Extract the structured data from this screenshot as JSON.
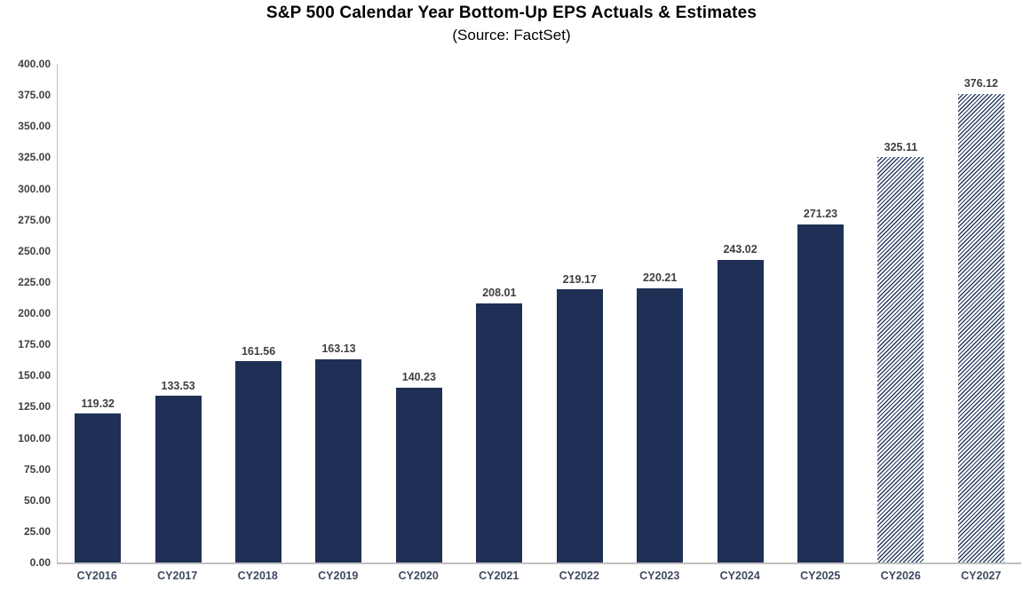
{
  "chart_data": {
    "type": "bar",
    "title": "S&P 500 Calendar Year Bottom-Up EPS Actuals & Estimates",
    "subtitle": "(Source: FactSet)",
    "categories": [
      "CY2016",
      "CY2017",
      "CY2018",
      "CY2019",
      "CY2020",
      "CY2021",
      "CY2022",
      "CY2023",
      "CY2024",
      "CY2025",
      "CY2026",
      "CY2027"
    ],
    "values": [
      119.32,
      133.53,
      161.56,
      163.13,
      140.23,
      208.01,
      219.17,
      220.21,
      243.02,
      271.23,
      325.11,
      376.12
    ],
    "value_labels": [
      "119.32",
      "133.53",
      "161.56",
      "163.13",
      "140.23",
      "208.01",
      "219.17",
      "220.21",
      "243.02",
      "271.23",
      "325.11",
      "376.12"
    ],
    "bar_styles": [
      "solid",
      "solid",
      "solid",
      "solid",
      "solid",
      "solid",
      "solid",
      "solid",
      "solid",
      "solid",
      "hatched",
      "hatched"
    ],
    "bar_style_meaning": {
      "solid": "actual",
      "hatched": "estimate"
    },
    "xlabel": "",
    "ylabel": "",
    "ylim": [
      0,
      400
    ],
    "ytick_step": 25,
    "yticks": [
      "400.00",
      "375.00",
      "350.00",
      "325.00",
      "300.00",
      "275.00",
      "250.00",
      "225.00",
      "200.00",
      "175.00",
      "150.00",
      "125.00",
      "100.00",
      "75.00",
      "50.00",
      "25.00",
      "0.00"
    ],
    "grid": false,
    "legend": null,
    "colors": {
      "bar": "#1F2F55",
      "hatch_stripe": "#2A3C63",
      "hatch_background": "#FFFFFF",
      "title": "#000000",
      "subtitle": "#000000",
      "data_label": "#404040",
      "tick_label": "#404040",
      "x_label": "#3E4A60",
      "axis_line": "#BFBFBF"
    }
  }
}
